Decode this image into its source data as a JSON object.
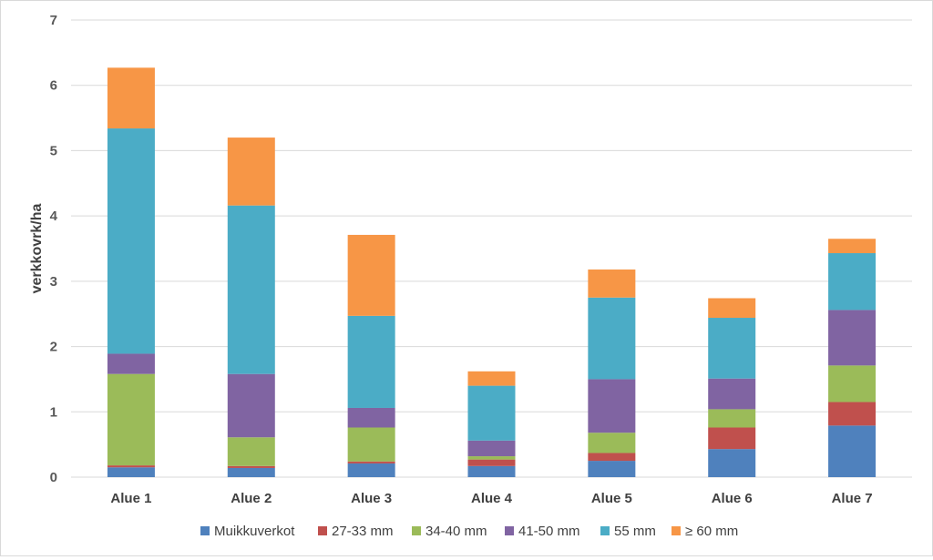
{
  "chart_data": {
    "type": "bar",
    "stacked": true,
    "ylabel": "verkkovrk/ha",
    "xlabel": "",
    "ylim": [
      0,
      7
    ],
    "yticks": [
      0,
      1,
      2,
      3,
      4,
      5,
      6,
      7
    ],
    "grid": true,
    "legend_position": "bottom",
    "categories": [
      "Alue 1",
      "Alue 2",
      "Alue 3",
      "Alue 4",
      "Alue 5",
      "Alue 6",
      "Alue 7"
    ],
    "series": [
      {
        "name": "Muikkuverkot",
        "color": "#4f81bd",
        "values": [
          0.15,
          0.14,
          0.21,
          0.17,
          0.25,
          0.43,
          0.79
        ]
      },
      {
        "name": "27-33 mm",
        "color": "#c0504d",
        "values": [
          0.03,
          0.03,
          0.03,
          0.1,
          0.12,
          0.33,
          0.36
        ]
      },
      {
        "name": "34-40 mm",
        "color": "#9bbb59",
        "values": [
          1.4,
          0.44,
          0.52,
          0.05,
          0.31,
          0.28,
          0.56
        ]
      },
      {
        "name": "41-50 mm",
        "color": "#8064a2",
        "values": [
          0.31,
          0.97,
          0.3,
          0.24,
          0.82,
          0.47,
          0.85
        ]
      },
      {
        "name": "55 mm",
        "color": "#4bacc6",
        "values": [
          3.45,
          2.58,
          1.41,
          0.84,
          1.25,
          0.93,
          0.87
        ]
      },
      {
        "name": "≥ 60 mm",
        "color": "#f79646",
        "values": [
          0.93,
          1.04,
          1.24,
          0.22,
          0.43,
          0.3,
          0.22
        ]
      }
    ]
  }
}
